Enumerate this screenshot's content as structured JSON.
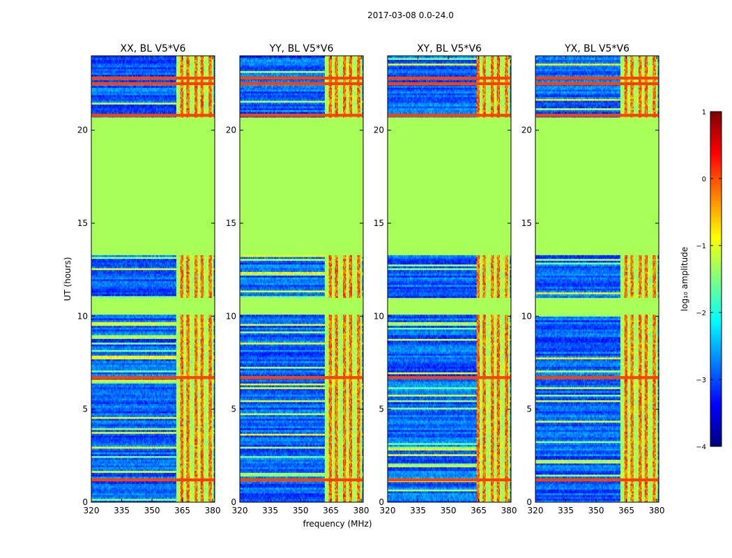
{
  "figure": {
    "suptitle": "2017-03-08 0.0-24.0"
  },
  "chart_data": [
    {
      "type": "heatmap",
      "title": "XX, BL V5*V6",
      "xlabel": "",
      "ylabel": "UT (hours)",
      "xlim": [
        320,
        381
      ],
      "ylim": [
        0,
        24
      ],
      "xticks": [
        320,
        335,
        350,
        365,
        380
      ],
      "yticks": [
        0,
        5,
        10,
        15,
        20
      ],
      "flagged_bands_hours": [
        [
          10.1,
          11.0
        ],
        [
          13.3,
          20.7
        ]
      ],
      "rfi_band_mhz": [
        363,
        380
      ],
      "strong_rfi_lines_hours": [
        1.2,
        6.7,
        20.8,
        22.5,
        22.8
      ]
    },
    {
      "type": "heatmap",
      "title": "YY, BL V5*V6",
      "xlabel": "frequency (MHz)",
      "ylabel": "",
      "xlim": [
        320,
        381
      ],
      "ylim": [
        0,
        24
      ],
      "xticks": [
        320,
        335,
        350,
        365,
        380
      ],
      "yticks": [
        0,
        5,
        10,
        15,
        20
      ],
      "flagged_bands_hours": [
        [
          10.1,
          11.0
        ],
        [
          13.3,
          20.7
        ]
      ],
      "rfi_band_mhz": [
        363,
        380
      ],
      "strong_rfi_lines_hours": [
        1.2,
        6.7,
        20.8,
        22.5,
        22.8
      ]
    },
    {
      "type": "heatmap",
      "title": "XY, BL V5*V6",
      "xlabel": "",
      "ylabel": "",
      "xlim": [
        320,
        381
      ],
      "ylim": [
        0,
        24
      ],
      "xticks": [
        320,
        335,
        350,
        365,
        380
      ],
      "yticks": [
        0,
        5,
        10,
        15,
        20
      ],
      "flagged_bands_hours": [
        [
          10.1,
          11.0
        ],
        [
          13.3,
          20.7
        ]
      ],
      "rfi_band_mhz": [
        363,
        380
      ],
      "strong_rfi_lines_hours": [
        1.2,
        6.7,
        20.8,
        22.5,
        22.8
      ]
    },
    {
      "type": "heatmap",
      "title": "YX, BL V5*V6",
      "xlabel": "",
      "ylabel": "",
      "xlim": [
        320,
        381
      ],
      "ylim": [
        0,
        24
      ],
      "xticks": [
        320,
        335,
        350,
        365,
        380
      ],
      "yticks": [
        0,
        5,
        10,
        15,
        20
      ],
      "flagged_bands_hours": [
        [
          10.1,
          11.0
        ],
        [
          13.3,
          20.7
        ]
      ],
      "rfi_band_mhz": [
        363,
        380
      ],
      "strong_rfi_lines_hours": [
        1.2,
        6.7,
        20.8,
        22.5,
        22.8
      ]
    }
  ],
  "colorbar": {
    "label": "log₁₀ amplitude",
    "ticks": [
      1,
      0,
      -1,
      -2,
      -3,
      -4
    ],
    "range": [
      -4,
      1
    ],
    "colormap": "jet"
  }
}
